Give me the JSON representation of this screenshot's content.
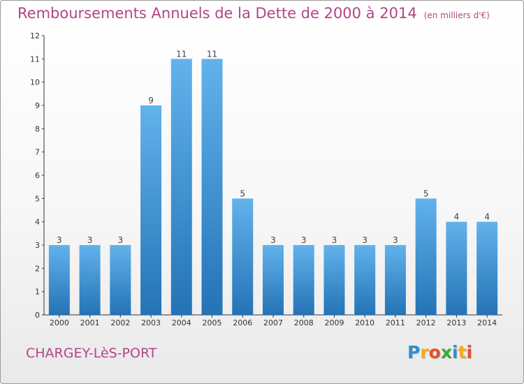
{
  "title": "Remboursements Annuels de la Dette de 2000 à 2014",
  "unit_note": "(en milliers d'€)",
  "commune": "CHARGEY-LèS-PORT",
  "logo": [
    "P",
    "r",
    "o",
    "x",
    "i",
    "t",
    "i"
  ],
  "logo_colors": [
    "#2e8fd4",
    "#f3a91c",
    "#e64e2a",
    "#3aa83a",
    "#2e8fd4",
    "#f3a91c",
    "#e64e2a"
  ],
  "colors": {
    "title": "#b34586",
    "bar_top": "#62b2ec",
    "bar_bottom": "#2473b6",
    "axis": "#333333"
  },
  "chart_data": {
    "type": "bar",
    "title": "Remboursements Annuels de la Dette de 2000 à 2014",
    "subtitle": "(en milliers d'€)",
    "categories": [
      "2000",
      "2001",
      "2002",
      "2003",
      "2004",
      "2005",
      "2006",
      "2007",
      "2008",
      "2009",
      "2010",
      "2011",
      "2012",
      "2013",
      "2014"
    ],
    "values": [
      3,
      3,
      3,
      9,
      11,
      11,
      5,
      3,
      3,
      3,
      3,
      3,
      5,
      4,
      4
    ],
    "ylim": [
      0,
      12
    ],
    "yticks": [
      0,
      1,
      2,
      3,
      4,
      5,
      6,
      7,
      8,
      9,
      10,
      11,
      12
    ],
    "xlabel": "",
    "ylabel": "",
    "grid": false,
    "legend": "none"
  }
}
